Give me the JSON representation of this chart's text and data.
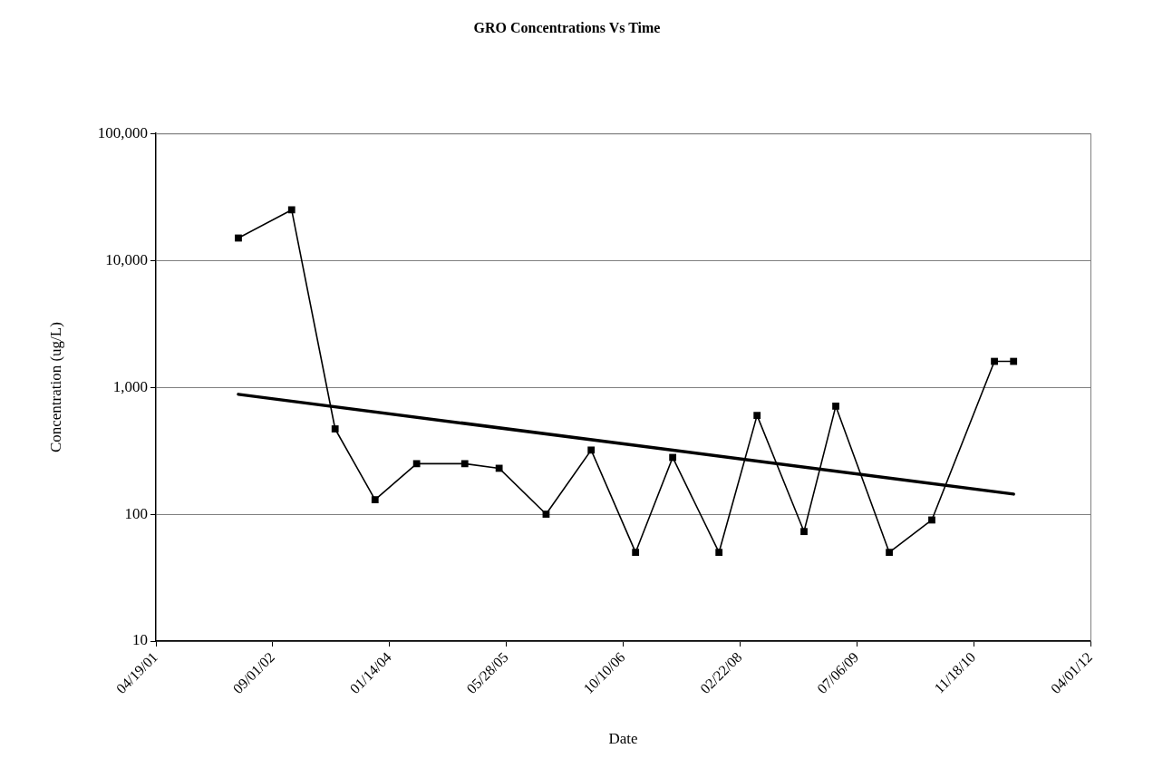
{
  "chart_data": {
    "type": "line",
    "title": "GRO Concentrations Vs Time",
    "xlabel": "Date",
    "ylabel": "Concentration (ug/L)",
    "log": "y",
    "grid": "y",
    "legend": false,
    "xlim": [
      "2001-04-19",
      "2012-04-01"
    ],
    "xticks": [
      {
        "value": "2001-04-19",
        "label": "04/19/01"
      },
      {
        "value": "2002-09-01",
        "label": "09/01/02"
      },
      {
        "value": "2004-01-14",
        "label": "01/14/04"
      },
      {
        "value": "2005-05-28",
        "label": "05/28/05"
      },
      {
        "value": "2006-10-10",
        "label": "10/10/06"
      },
      {
        "value": "2008-02-22",
        "label": "02/22/08"
      },
      {
        "value": "2009-07-06",
        "label": "07/06/09"
      },
      {
        "value": "2010-11-18",
        "label": "11/18/10"
      },
      {
        "value": "2012-04-01",
        "label": "04/01/12"
      }
    ],
    "ylim": [
      10,
      100000
    ],
    "yticks": [
      10,
      100,
      {
        "value": 1000,
        "label": "1,000"
      },
      {
        "value": 10000,
        "label": "10,000"
      },
      {
        "value": 100000,
        "label": "100,000"
      }
    ],
    "series": [
      {
        "color": "#000000",
        "marker": "square",
        "x": [
          "2002-04-07",
          "2002-11-21",
          "2003-05-26",
          "2003-11-13",
          "2004-05-09",
          "2004-12-01",
          "2005-04-27",
          "2005-11-14",
          "2006-05-26",
          "2006-12-02",
          "2007-05-10",
          "2007-11-24",
          "2008-05-05",
          "2008-11-22",
          "2009-04-07",
          "2009-11-22",
          "2010-05-23",
          "2011-02-15",
          "2011-05-08"
        ],
        "values": [
          15000,
          25000,
          470,
          130,
          250,
          250,
          230,
          100,
          320,
          50,
          280,
          50,
          600,
          73,
          710,
          50,
          90,
          1600,
          1600
        ]
      },
      {
        "color": "#000000",
        "marker": "none",
        "x": [
          "2002-04-07",
          "2011-05-08"
        ],
        "values": [
          880,
          144
        ]
      }
    ]
  }
}
